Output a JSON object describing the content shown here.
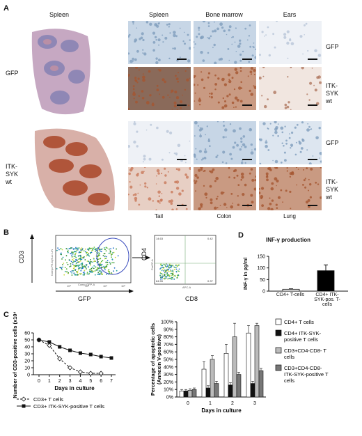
{
  "panel_a": {
    "label": "A",
    "left_header": "Spleen",
    "left_rows": [
      "GFP",
      "ITK-\nSYK\nwt"
    ],
    "col_headers": [
      "Spleen",
      "Bone marrow",
      "Ears"
    ],
    "row_labels": [
      "GFP",
      "ITK-\nSYK\nwt",
      "GFP",
      "ITK-\nSYK\nwt"
    ],
    "bottom_captions": [
      "Tail",
      "Colon",
      "Lung"
    ]
  },
  "panel_b": {
    "label": "B",
    "plot1_ylabel": "CD3",
    "plot1_xlabel": "GFP",
    "plot1_yaxis_small": "Comp-PE-Cy5-A: LIN",
    "plot1_xaxis_small": "Comp-GFP-A",
    "plot2_ylabel": "CD4",
    "plot2_xlabel": "CD8",
    "plot2_yaxis_small": "PerCP-A",
    "plot2_xaxis_small": "APC-A",
    "quadrants": [
      "14.63",
      "0.42",
      "84.55",
      "0.37"
    ],
    "ticks": [
      "10²",
      "10³",
      "10⁴",
      "10⁵"
    ]
  },
  "panel_c": {
    "label": "C",
    "chart_data": [
      {
        "type": "line",
        "ylabel": "Number of CD3-positive cells (x10⁴)",
        "xlabel": "Days in culture",
        "x": [
          0,
          1,
          2,
          3,
          4,
          5,
          6,
          7
        ],
        "ylim": [
          0,
          60
        ],
        "yticks": [
          0,
          10,
          20,
          30,
          40,
          50,
          60
        ],
        "series": [
          {
            "name": "CD3+ T cells",
            "values": [
              50,
              42,
              23,
              10,
              4,
              2,
              2,
              null
            ]
          },
          {
            "name": "CD3+ ITK-SYK-positive T cells",
            "values": [
              50,
              47,
              40,
              35,
              31,
              29,
              26,
              24
            ]
          }
        ]
      },
      {
        "type": "bar",
        "ylabel": "Percentage of apoptotic cells (Annexin V-positive)",
        "xlabel": "Days in culture",
        "categories": [
          "0",
          "1",
          "2",
          "3"
        ],
        "ylim": [
          0,
          100
        ],
        "yticks": [
          "0%",
          "10%",
          "20%",
          "30%",
          "40%",
          "50%",
          "60%",
          "70%",
          "80%",
          "90%",
          "100%"
        ],
        "series": [
          {
            "name": "CD4+ T cells",
            "color": "#ffffff",
            "values": [
              8,
              37,
              58,
              85
            ],
            "errors": [
              2,
              10,
              12,
              10
            ]
          },
          {
            "name": "CD4+ ITK-SYK-positive T cells",
            "color": "#111111",
            "values": [
              8,
              12,
              16,
              18
            ],
            "errors": [
              2,
              3,
              3,
              3
            ]
          },
          {
            "name": "CD3+CD4-CD8- T cells",
            "color": "#bbbbbb",
            "values": [
              9,
              50,
              80,
              95
            ],
            "errors": [
              2,
              5,
              18,
              3
            ]
          },
          {
            "name": "CD3+CD4-CD8- ITK-SYK-positive T cells",
            "color": "#777777",
            "values": [
              10,
              18,
              30,
              35
            ],
            "errors": [
              2,
              3,
              3,
              3
            ]
          }
        ]
      }
    ]
  },
  "panel_d": {
    "label": "D",
    "chart_data": {
      "type": "bar",
      "title": "INF-γ production",
      "ylabel": "INF-γ in pg/ml",
      "categories": [
        "CD4+ T-cells",
        "CD4+ ITK-\nSYK-pos. T-\ncells"
      ],
      "values": [
        8,
        88
      ],
      "errors": [
        2,
        25
      ],
      "ylim": [
        0,
        150
      ],
      "yticks": [
        0,
        50,
        100,
        150
      ],
      "colors": [
        "#ffffff",
        "#000000"
      ]
    }
  },
  "tiles": {
    "blue_base": "#c7d6e6",
    "blue_dark": "#7f9dbd",
    "brown": "#a5552f",
    "pink": "#d9a79a"
  }
}
